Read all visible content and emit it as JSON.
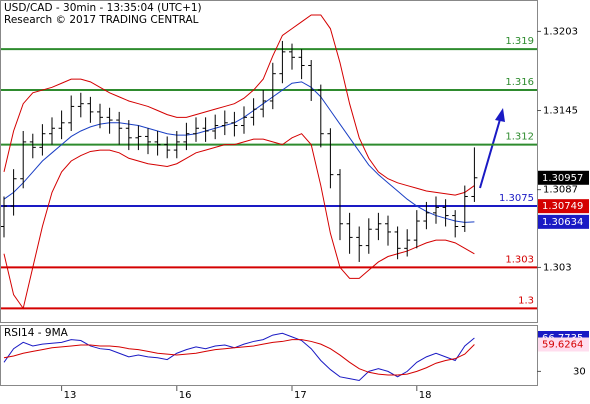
{
  "chart_data": [
    {
      "type": "ohlc",
      "title": "USD/CAD - 30min - 13:35:04 (UTC+1)",
      "subtitle": "Research © 2017 TRADING CENTRAL",
      "categories": [
        null,
        null,
        null,
        null,
        null,
        null,
        "13",
        null,
        null,
        null,
        null,
        null,
        null,
        null,
        null,
        null,
        null,
        null,
        "16",
        null,
        null,
        null,
        null,
        null,
        null,
        null,
        null,
        null,
        null,
        null,
        "17",
        null,
        null,
        null,
        null,
        null,
        null,
        null,
        null,
        null,
        null,
        null,
        null,
        "18",
        null,
        null,
        null,
        null,
        null,
        null
      ],
      "open": [
        1.306,
        1.3075,
        1.3095,
        1.3122,
        1.3118,
        1.3128,
        1.3132,
        1.3136,
        1.3148,
        1.315,
        1.3144,
        1.314,
        1.3138,
        1.3132,
        1.3125,
        1.3126,
        1.3122,
        1.312,
        1.3116,
        1.3122,
        1.3128,
        1.3132,
        1.313,
        1.3134,
        1.3136,
        1.3134,
        1.314,
        1.3146,
        1.3152,
        1.3172,
        1.3188,
        1.3184,
        1.3178,
        1.316,
        1.3128,
        1.3098,
        1.3062,
        1.3052,
        1.3046,
        1.3058,
        1.3062,
        1.3056,
        1.3044,
        1.305,
        1.3064,
        1.307,
        1.3074,
        1.3068,
        1.306,
        1.3082
      ],
      "high": [
        1.3082,
        1.3102,
        1.313,
        1.3128,
        1.3135,
        1.314,
        1.3145,
        1.3156,
        1.3158,
        1.3155,
        1.315,
        1.3147,
        1.3144,
        1.3138,
        1.3134,
        1.3132,
        1.313,
        1.3126,
        1.313,
        1.3136,
        1.314,
        1.314,
        1.3142,
        1.3145,
        1.3144,
        1.3148,
        1.3154,
        1.316,
        1.318,
        1.3196,
        1.3194,
        1.319,
        1.3182,
        1.3164,
        1.3132,
        1.3102,
        1.307,
        1.306,
        1.3066,
        1.307,
        1.3068,
        1.306,
        1.3058,
        1.3072,
        1.3078,
        1.3082,
        1.308,
        1.3072,
        1.309,
        1.3118
      ],
      "low": [
        1.3052,
        1.3068,
        1.3088,
        1.311,
        1.3112,
        1.312,
        1.3124,
        1.313,
        1.314,
        1.3136,
        1.3132,
        1.3128,
        1.312,
        1.3116,
        1.3116,
        1.3113,
        1.3112,
        1.311,
        1.311,
        1.3116,
        1.3122,
        1.3122,
        1.3124,
        1.3127,
        1.3126,
        1.3128,
        1.3134,
        1.314,
        1.3146,
        1.3165,
        1.3175,
        1.3168,
        1.3152,
        1.3118,
        1.3088,
        1.305,
        1.304,
        1.3034,
        1.304,
        1.305,
        1.3046,
        1.3036,
        1.3038,
        1.3044,
        1.3058,
        1.3062,
        1.306,
        1.3052,
        1.3056,
        1.3078
      ],
      "close": [
        1.3075,
        1.3095,
        1.3122,
        1.3118,
        1.3128,
        1.3132,
        1.3136,
        1.3148,
        1.315,
        1.3144,
        1.314,
        1.3138,
        1.3132,
        1.3125,
        1.3126,
        1.3122,
        1.312,
        1.3116,
        1.3122,
        1.3128,
        1.3132,
        1.313,
        1.3134,
        1.3136,
        1.3134,
        1.314,
        1.3146,
        1.3152,
        1.3172,
        1.3188,
        1.3184,
        1.3178,
        1.316,
        1.3128,
        1.3098,
        1.3062,
        1.3052,
        1.3046,
        1.3058,
        1.3062,
        1.3056,
        1.3044,
        1.305,
        1.3064,
        1.307,
        1.3074,
        1.3068,
        1.306,
        1.3082,
        1.30957
      ],
      "series": [
        {
          "color": "#d40000",
          "values": [
            1.31,
            1.313,
            1.315,
            1.3158,
            1.316,
            1.3162,
            1.3165,
            1.3168,
            1.3168,
            1.3166,
            1.3162,
            1.3158,
            1.3155,
            1.3152,
            1.315,
            1.3148,
            1.3145,
            1.3142,
            1.314,
            1.314,
            1.3142,
            1.3144,
            1.3146,
            1.3148,
            1.315,
            1.3154,
            1.316,
            1.3168,
            1.3185,
            1.32,
            1.3205,
            1.321,
            1.3215,
            1.3215,
            1.3205,
            1.318,
            1.315,
            1.3125,
            1.311,
            1.31,
            1.3095,
            1.3092,
            1.309,
            1.3088,
            1.3086,
            1.3085,
            1.3084,
            1.3083,
            1.3085,
            1.309
          ]
        },
        {
          "color": "#d40000",
          "values": [
            1.304,
            1.301,
            1.3,
            1.303,
            1.306,
            1.3085,
            1.31,
            1.3108,
            1.3112,
            1.3115,
            1.3116,
            1.3116,
            1.3114,
            1.311,
            1.3108,
            1.3106,
            1.3105,
            1.3104,
            1.3106,
            1.311,
            1.3114,
            1.3116,
            1.3118,
            1.312,
            1.312,
            1.3122,
            1.3124,
            1.3124,
            1.3122,
            1.312,
            1.3125,
            1.3128,
            1.312,
            1.309,
            1.3055,
            1.303,
            1.3022,
            1.3022,
            1.3028,
            1.3034,
            1.3038,
            1.304,
            1.3042,
            1.3045,
            1.3048,
            1.305,
            1.305,
            1.3048,
            1.3044,
            1.304
          ]
        },
        {
          "color": "#1a3fc4",
          "values": [
            1.308,
            1.3085,
            1.3092,
            1.31,
            1.3108,
            1.3114,
            1.312,
            1.3126,
            1.313,
            1.3133,
            1.3135,
            1.3136,
            1.3136,
            1.3135,
            1.3134,
            1.3132,
            1.313,
            1.3128,
            1.3127,
            1.3127,
            1.3128,
            1.313,
            1.3132,
            1.3134,
            1.3136,
            1.314,
            1.3145,
            1.315,
            1.3155,
            1.316,
            1.3165,
            1.3166,
            1.3162,
            1.3155,
            1.3145,
            1.3135,
            1.3125,
            1.3115,
            1.3105,
            1.3098,
            1.3092,
            1.3086,
            1.308,
            1.3075,
            1.3071,
            1.3068,
            1.3066,
            1.3064,
            1.3063,
            1.30634
          ]
        }
      ],
      "levels": [
        {
          "value": 1.319,
          "color": "#2e8b2e"
        },
        {
          "value": 1.316,
          "color": "#2e8b2e"
        },
        {
          "value": 1.312,
          "color": "#2e8b2e"
        },
        {
          "value": 1.3075,
          "color": "#1a1ac4"
        },
        {
          "value": 1.303,
          "color": "#d40000"
        },
        {
          "value": 1.3,
          "color": "#d40000"
        }
      ],
      "price_markers": [
        {
          "value": 1.30957,
          "color": "#000000"
        },
        {
          "value": 1.30749,
          "color": "#d40000"
        },
        {
          "value": 1.30634,
          "color": "#1a1ac4"
        }
      ],
      "ylim": [
        1.299,
        1.3226
      ],
      "yticks": [
        1.3203,
        1.3145,
        1.3087,
        1.303
      ]
    },
    {
      "type": "line",
      "title": "RSI14 - 9MA",
      "series": [
        {
          "color": "#1a1ac4",
          "values": [
            40,
            55,
            62,
            58,
            60,
            61,
            62,
            65,
            64,
            58,
            55,
            54,
            50,
            46,
            48,
            46,
            45,
            43,
            50,
            54,
            57,
            55,
            58,
            59,
            56,
            60,
            63,
            65,
            70,
            72,
            68,
            64,
            55,
            42,
            32,
            24,
            22,
            20,
            30,
            33,
            30,
            24,
            30,
            40,
            46,
            50,
            46,
            42,
            58,
            66.7735
          ]
        },
        {
          "color": "#d40000",
          "values": [
            45,
            47,
            50,
            52,
            54,
            56,
            57,
            58,
            59,
            59,
            58,
            58,
            57,
            55,
            54,
            52,
            50,
            49,
            48,
            49,
            50,
            52,
            54,
            55,
            56,
            57,
            58,
            60,
            62,
            63,
            65,
            65,
            63,
            60,
            55,
            48,
            40,
            33,
            29,
            27,
            26,
            26,
            27,
            30,
            34,
            39,
            42,
            44,
            49,
            59.6264
          ]
        }
      ],
      "ylim": [
        15,
        80
      ],
      "yticks": [
        30
      ]
    }
  ]
}
